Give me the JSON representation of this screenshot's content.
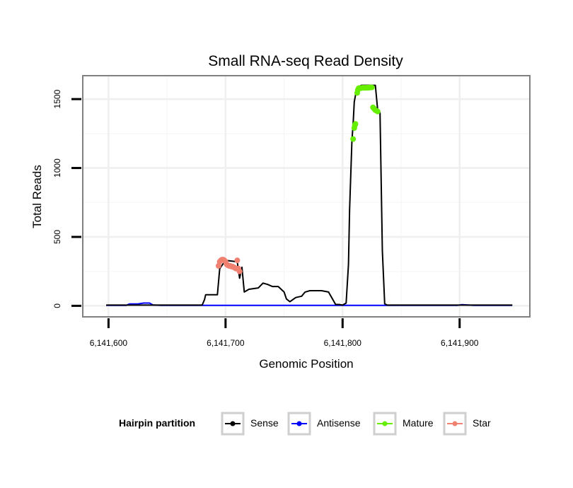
{
  "chart_data": {
    "type": "line",
    "title": "Small RNA-seq Read Density",
    "xlabel": "Genomic Position",
    "ylabel": "Total Reads",
    "xlim": [
      6141578,
      6141960
    ],
    "ylim": [
      -80,
      1670
    ],
    "x_ticks": [
      6141600,
      6141700,
      6141800,
      6141900
    ],
    "x_tick_labels": [
      "6,141,600",
      "6,141,700",
      "6,141,800",
      "6,141,900"
    ],
    "y_ticks": [
      0,
      500,
      1000,
      1500
    ],
    "y_tick_labels": [
      "0",
      "500",
      "1000",
      "1500"
    ],
    "grid": true,
    "legend": {
      "title": "Hairpin partition",
      "placement": "bottom",
      "entries": [
        {
          "name": "Sense",
          "color": "#000000"
        },
        {
          "name": "Antisense",
          "color": "#0000ff"
        },
        {
          "name": "Mature",
          "color": "#66ee00"
        },
        {
          "name": "Star",
          "color": "#f08070"
        }
      ]
    },
    "series": [
      {
        "name": "Sense",
        "color": "#000000",
        "kind": "line",
        "x": [
          6141598,
          6141615,
          6141625,
          6141635,
          6141645,
          6141680,
          6141682,
          6141683,
          6141693,
          6141695,
          6141700,
          6141710,
          6141712,
          6141714,
          6141716,
          6141720,
          6141728,
          6141732,
          6141736,
          6141740,
          6141745,
          6141750,
          6141752,
          6141755,
          6141760,
          6141765,
          6141768,
          6141772,
          6141776,
          6141782,
          6141788,
          6141792,
          6141794,
          6141797,
          6141800,
          6141803,
          6141805,
          6141806,
          6141808,
          6141809,
          6141810,
          6141812,
          6141814,
          6141816,
          6141818,
          6141820,
          6141825,
          6141828,
          6141830,
          6141832,
          6141834,
          6141836,
          6141838,
          6141870,
          6141900,
          6141915,
          6141945
        ],
        "y": [
          5,
          5,
          5,
          5,
          5,
          5,
          45,
          80,
          80,
          270,
          330,
          320,
          200,
          280,
          100,
          120,
          130,
          165,
          155,
          140,
          140,
          100,
          50,
          30,
          60,
          70,
          100,
          110,
          110,
          110,
          100,
          40,
          10,
          10,
          5,
          20,
          300,
          700,
          1200,
          1320,
          1480,
          1570,
          1590,
          1600,
          1600,
          1600,
          1600,
          1600,
          1420,
          1400,
          400,
          15,
          5,
          5,
          5,
          5,
          5
        ]
      },
      {
        "name": "Antisense",
        "color": "#0000ff",
        "kind": "line",
        "x": [
          6141598,
          6141615,
          6141618,
          6141625,
          6141630,
          6141635,
          6141638,
          6141645,
          6141840,
          6141898,
          6141902,
          6141912,
          6141945
        ],
        "y": [
          3,
          3,
          14,
          14,
          20,
          20,
          6,
          3,
          3,
          3,
          9,
          3,
          3
        ]
      },
      {
        "name": "Mature",
        "color": "#66ee00",
        "kind": "points",
        "x": [
          6141809,
          6141810,
          6141810.5,
          6141811,
          6141812.5,
          6141813,
          6141813.5,
          6141814,
          6141815,
          6141816,
          6141817,
          6141818,
          6141819,
          6141820,
          6141821,
          6141822,
          6141823,
          6141824,
          6141825,
          6141826,
          6141827,
          6141828,
          6141829,
          6141830
        ],
        "y": [
          1210,
          1290,
          1310,
          1320,
          1545,
          1565,
          1575,
          1580,
          1580,
          1580,
          1582,
          1582,
          1582,
          1582,
          1583,
          1583,
          1584,
          1585,
          1585,
          1440,
          1430,
          1420,
          1415,
          1410
        ]
      },
      {
        "name": "Star",
        "color": "#f08070",
        "kind": "points",
        "x": [
          6141694,
          6141695,
          6141696,
          6141697,
          6141698,
          6141699,
          6141700,
          6141701,
          6141702,
          6141703,
          6141704,
          6141705,
          6141706,
          6141707,
          6141708,
          6141709,
          6141710,
          6141711,
          6141712
        ],
        "y": [
          290,
          320,
          330,
          335,
          335,
          330,
          320,
          300,
          295,
          290,
          290,
          285,
          285,
          280,
          275,
          270,
          330,
          270,
          250
        ]
      }
    ]
  }
}
